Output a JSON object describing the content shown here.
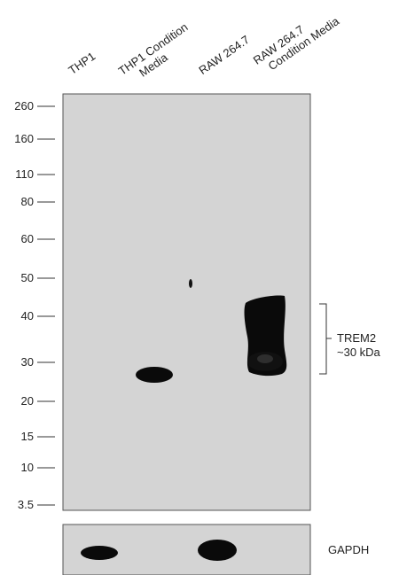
{
  "lanes": [
    {
      "label_lines": [
        "THP1"
      ]
    },
    {
      "label_lines": [
        "THP1 Condition",
        "Media"
      ]
    },
    {
      "label_lines": [
        "RAW 264.7"
      ]
    },
    {
      "label_lines": [
        "RAW 264.7",
        "Condition Media"
      ]
    }
  ],
  "markers": [
    "260",
    "160",
    "110",
    "80",
    "60",
    "50",
    "40",
    "30",
    "20",
    "15",
    "10",
    "3.5"
  ],
  "annotations": {
    "trem2_line1": "TREM2",
    "trem2_line2": "~30 kDa",
    "loading_control": "GAPDH"
  },
  "colors": {
    "membrane": "#d4d4d4",
    "band": "#0a0a0a",
    "frame": "#555555"
  }
}
